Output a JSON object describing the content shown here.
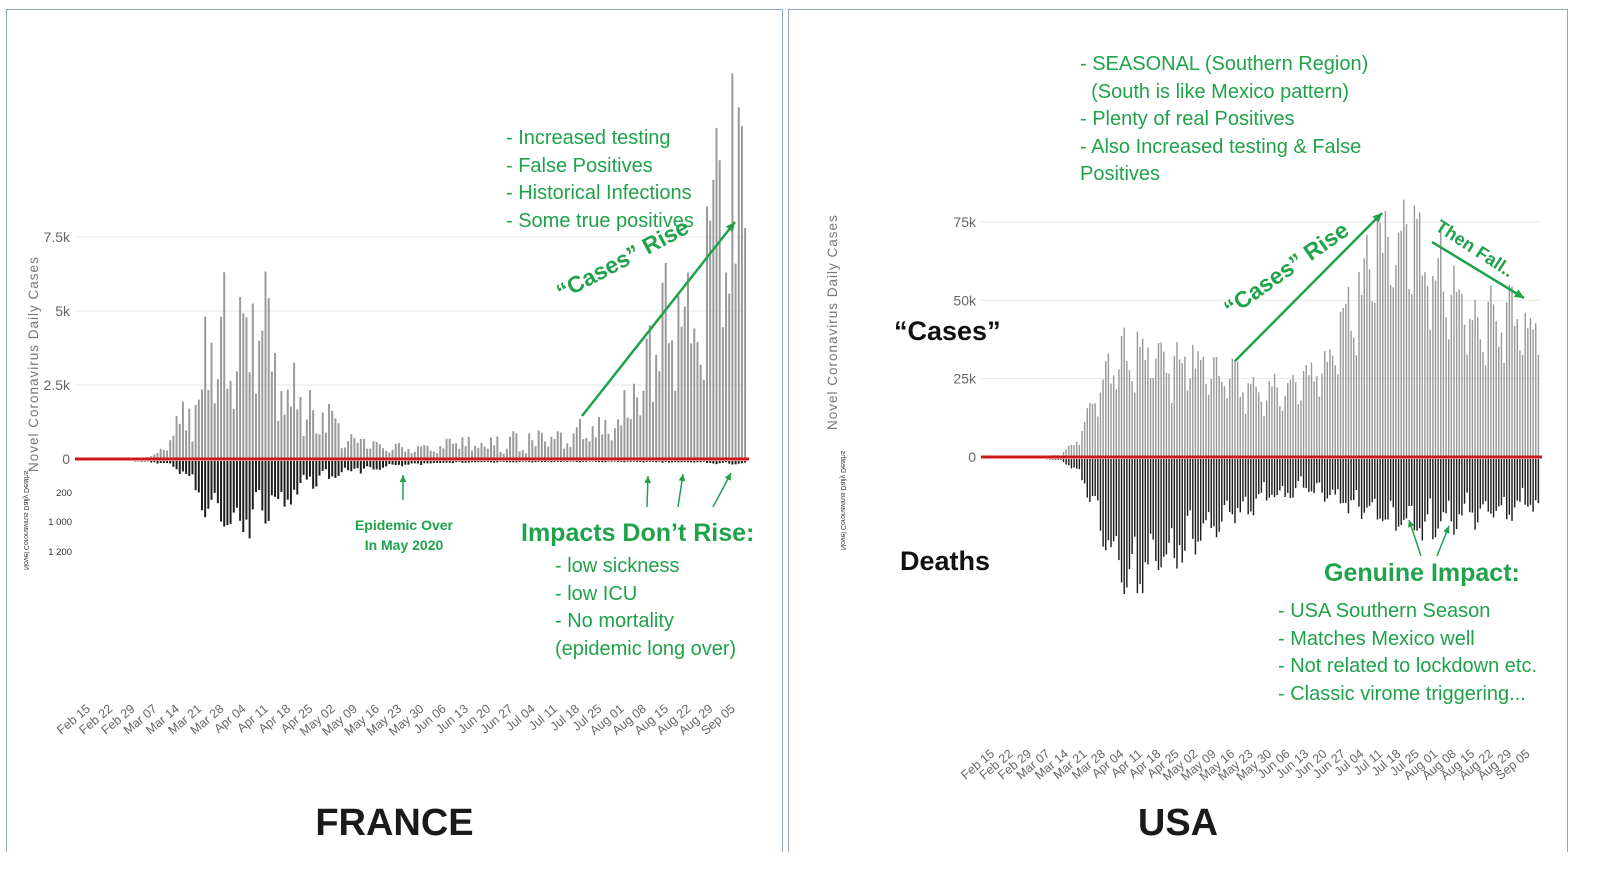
{
  "panels": [
    {
      "country": "FRANCE",
      "y_axis_label": "Novel Coronavirus Daily Cases",
      "deaths_axis_label": "Novel Coronavirus Daily Deaths",
      "annotations": {
        "top_notes": [
          "- Increased testing",
          "- False Positives",
          "- Historical Infections",
          "- Some true positives"
        ],
        "cases_rise": "“Cases” Rise",
        "epidemic_over": [
          "Epidemic Over",
          "In May 2020"
        ],
        "impacts_title": "Impacts Don’t Rise:",
        "impacts_notes": [
          "- low sickness",
          "- low ICU",
          "- No mortality",
          "(epidemic long over)"
        ]
      }
    },
    {
      "country": "USA",
      "y_axis_label": "Novel Coronavirus Daily Cases",
      "deaths_axis_label": "Novel Coronavirus Daily Deaths",
      "annotations": {
        "top_notes": [
          "- SEASONAL (Southern Region)",
          "  (South is like Mexico pattern)",
          "- Plenty of real Positives",
          "- Also Increased testing & False",
          "Positives"
        ],
        "cases_label": "“Cases”",
        "deaths_label": "Deaths",
        "cases_rise": "“Cases” Rise",
        "then_fall": "Then Fall..",
        "impact_title": "Genuine Impact:",
        "impact_notes": [
          "- USA Southern Season",
          "- Matches Mexico well",
          "- Not related to lockdown etc.",
          "- Classic virome triggering..."
        ]
      }
    }
  ],
  "colors": {
    "annotation_green": "#1fa24a",
    "baseline_red": "#d01818",
    "case_bar": "#9a9a9a",
    "death_bar": "#1e1e1e",
    "grid": "#e6e6e6"
  },
  "chart_data": [
    {
      "type": "bar",
      "title": "FRANCE",
      "ylabel": "Novel Coronavirus Daily Cases",
      "ylim_cases": [
        0,
        7500
      ],
      "yticks_cases": [
        "0",
        "2.5k",
        "5k",
        "7.5k"
      ],
      "ylim_deaths": [
        0,
        1200
      ],
      "yticks_deaths": [
        "200",
        "1 000",
        "1 200"
      ],
      "xticks": [
        "Feb 15",
        "Feb 22",
        "Feb 29",
        "Mar 07",
        "Mar 14",
        "Mar 21",
        "Mar 28",
        "Apr 04",
        "Apr 11",
        "Apr 18",
        "Apr 25",
        "May 02",
        "May 09",
        "May 16",
        "May 23",
        "May 30",
        "Jun 06",
        "Jun 13",
        "Jun 20",
        "Jun 27",
        "Jul 04",
        "Jul 11",
        "Jul 18",
        "Jul 25",
        "Aug 01",
        "Aug 08",
        "Aug 15",
        "Aug 22",
        "Aug 29",
        "Sep 05"
      ],
      "series": [
        {
          "name": "Daily Cases",
          "weekly": [
            0,
            0,
            10,
            80,
            600,
            1800,
            3900,
            4300,
            4700,
            2700,
            1500,
            1200,
            600,
            400,
            350,
            250,
            450,
            500,
            500,
            520,
            550,
            600,
            800,
            1100,
            1700,
            2400,
            3400,
            4900,
            6200,
            8200
          ]
        },
        {
          "name": "Daily Deaths",
          "weekly": [
            0,
            0,
            0,
            10,
            50,
            280,
            820,
            950,
            800,
            550,
            320,
            250,
            150,
            110,
            70,
            50,
            30,
            25,
            20,
            15,
            15,
            15,
            12,
            12,
            12,
            15,
            18,
            22,
            25,
            35
          ]
        }
      ]
    },
    {
      "type": "bar",
      "title": "USA",
      "ylabel": "Novel Coronavirus Daily Cases",
      "ylim_cases": [
        0,
        75000
      ],
      "yticks_cases": [
        "0",
        "25k",
        "50k",
        "75k"
      ],
      "xticks": [
        "Feb 15",
        "Feb 22",
        "Feb 29",
        "Mar 07",
        "Mar 14",
        "Mar 21",
        "Mar 28",
        "Apr 04",
        "Apr 11",
        "Apr 18",
        "Apr 25",
        "May 02",
        "May 09",
        "May 16",
        "May 23",
        "May 30",
        "Jun 06",
        "Jun 13",
        "Jun 20",
        "Jun 27",
        "Jul 04",
        "Jul 11",
        "Jul 18",
        "Jul 25",
        "Aug 01",
        "Aug 08",
        "Aug 15",
        "Aug 22",
        "Aug 29",
        "Sep 05"
      ],
      "series": [
        {
          "name": "Daily Cases",
          "weekly": [
            0,
            0,
            0,
            50,
            800,
            6000,
            20000,
            30000,
            32000,
            30000,
            29000,
            30000,
            27000,
            25000,
            22000,
            20000,
            21000,
            23000,
            27000,
            38000,
            52000,
            63000,
            68000,
            66000,
            60000,
            53000,
            48000,
            45000,
            42000,
            43000
          ]
        },
        {
          "name": "Daily Deaths",
          "weekly": [
            0,
            0,
            0,
            0,
            20,
            250,
            1100,
            1900,
            2200,
            2000,
            1800,
            1500,
            1300,
            1100,
            900,
            700,
            650,
            550,
            600,
            750,
            850,
            1000,
            1150,
            1200,
            1250,
            1150,
            1050,
            1000,
            950,
            900
          ]
        }
      ]
    }
  ]
}
